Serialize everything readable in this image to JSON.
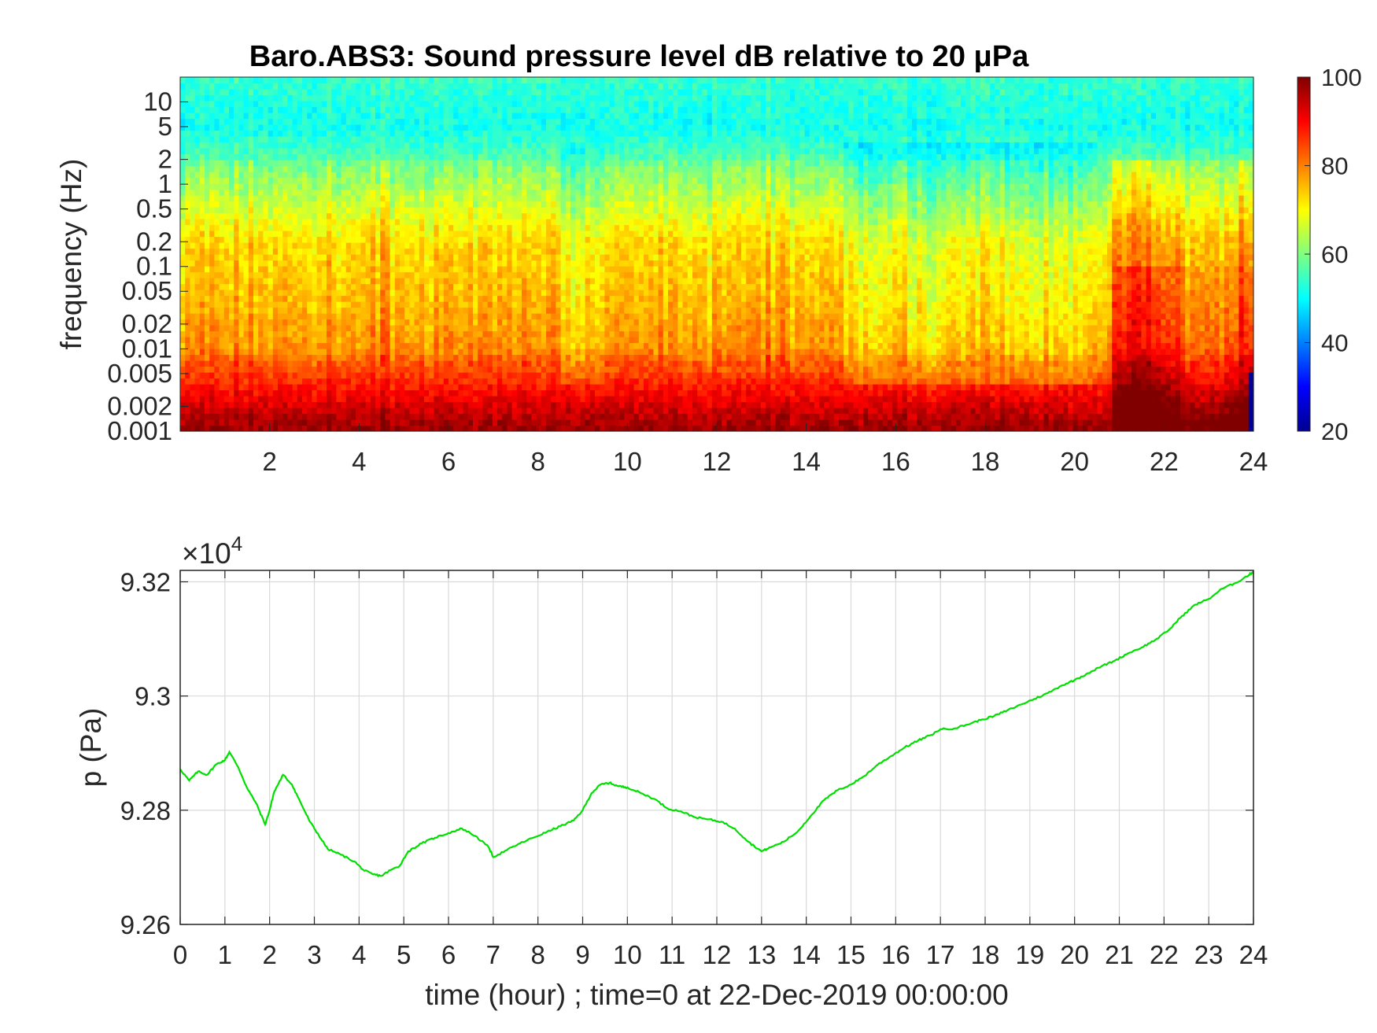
{
  "chart_data": [
    {
      "type": "heatmap",
      "title": "Baro.ABS3: Sound pressure level dB relative to 20 μPa",
      "ylabel": "frequency (Hz)",
      "xlabel": "",
      "x_range": [
        0,
        24
      ],
      "x_ticks": [
        "2",
        "4",
        "6",
        "8",
        "10",
        "12",
        "14",
        "16",
        "18",
        "20",
        "22",
        "24"
      ],
      "y_scale": "log",
      "y_range": [
        0.001,
        20
      ],
      "y_ticks": [
        "10",
        "5",
        "2",
        "1",
        "0.5",
        "0.2",
        "0.1",
        "0.05",
        "0.02",
        "0.01",
        "0.005",
        "0.002",
        "0.001"
      ],
      "colorbar": {
        "min": 20,
        "max": 100,
        "ticks": [
          "100",
          "80",
          "60",
          "40",
          "20"
        ],
        "colormap": "jet"
      },
      "grid": false,
      "level_profile_db": [
        {
          "f": 0.001,
          "db": 97
        },
        {
          "f": 0.002,
          "db": 92
        },
        {
          "f": 0.005,
          "db": 84
        },
        {
          "f": 0.01,
          "db": 76
        },
        {
          "f": 0.05,
          "db": 72
        },
        {
          "f": 0.2,
          "db": 70
        },
        {
          "f": 1,
          "db": 60
        },
        {
          "f": 5,
          "db": 50
        },
        {
          "f": 20,
          "db": 53
        }
      ]
    },
    {
      "type": "line",
      "ylabel": "p (Pa)",
      "xlabel": "time (hour) ; time=0 at 22-Dec-2019 00:00:00",
      "y_multiplier": "×10",
      "y_multiplier_exp": "4",
      "x_range": [
        0,
        24
      ],
      "y_range": [
        92600,
        93220
      ],
      "x_ticks": [
        "0",
        "1",
        "2",
        "3",
        "4",
        "5",
        "6",
        "7",
        "8",
        "9",
        "10",
        "11",
        "12",
        "13",
        "14",
        "15",
        "16",
        "17",
        "18",
        "19",
        "20",
        "21",
        "22",
        "23",
        "24"
      ],
      "y_ticks": [
        "9.32",
        "9.3",
        "9.28",
        "9.26"
      ],
      "grid": true,
      "series": [
        {
          "color": "#00e000",
          "x": [
            0,
            0.2,
            0.4,
            0.6,
            0.8,
            1.0,
            1.1,
            1.3,
            1.5,
            1.7,
            1.9,
            2.0,
            2.1,
            2.3,
            2.5,
            2.7,
            2.9,
            3.1,
            3.3,
            3.6,
            3.9,
            4.1,
            4.3,
            4.5,
            4.7,
            4.9,
            5.1,
            5.4,
            5.7,
            6.0,
            6.3,
            6.6,
            6.9,
            7.0,
            7.3,
            7.6,
            7.9,
            8.2,
            8.5,
            8.8,
            9.0,
            9.2,
            9.4,
            9.6,
            9.8,
            10.0,
            10.3,
            10.6,
            10.9,
            11.2,
            11.5,
            11.8,
            12.1,
            12.4,
            12.7,
            13.0,
            13.2,
            13.5,
            13.8,
            14.1,
            14.4,
            14.7,
            15.0,
            15.3,
            15.6,
            15.9,
            16.2,
            16.5,
            16.8,
            17.0,
            17.3,
            17.6,
            17.9,
            18.2,
            18.5,
            18.8,
            19.1,
            19.4,
            19.7,
            20.0,
            20.3,
            20.6,
            20.9,
            21.2,
            21.5,
            21.8,
            22.1,
            22.4,
            22.7,
            23.0,
            23.3,
            23.6,
            23.9,
            24.0
          ],
          "y": [
            92872,
            92852,
            92868,
            92862,
            92880,
            92888,
            92902,
            92875,
            92838,
            92812,
            92775,
            92800,
            92832,
            92862,
            92845,
            92812,
            92780,
            92756,
            92732,
            92722,
            92710,
            92695,
            92688,
            92685,
            92695,
            92702,
            92728,
            92742,
            92752,
            92760,
            92768,
            92755,
            92735,
            92718,
            92730,
            92742,
            92752,
            92762,
            92772,
            92782,
            92800,
            92830,
            92845,
            92848,
            92842,
            92840,
            92830,
            92820,
            92803,
            92798,
            92788,
            92784,
            92780,
            92768,
            92745,
            92728,
            92735,
            92745,
            92762,
            92790,
            92818,
            92835,
            92845,
            92860,
            92880,
            92895,
            92910,
            92922,
            92932,
            92942,
            92943,
            92950,
            92958,
            92965,
            92975,
            92985,
            92995,
            93005,
            93018,
            93028,
            93040,
            93052,
            93062,
            93075,
            93085,
            93098,
            93115,
            93140,
            93160,
            93170,
            93188,
            93198,
            93212,
            93218
          ]
        }
      ]
    }
  ]
}
